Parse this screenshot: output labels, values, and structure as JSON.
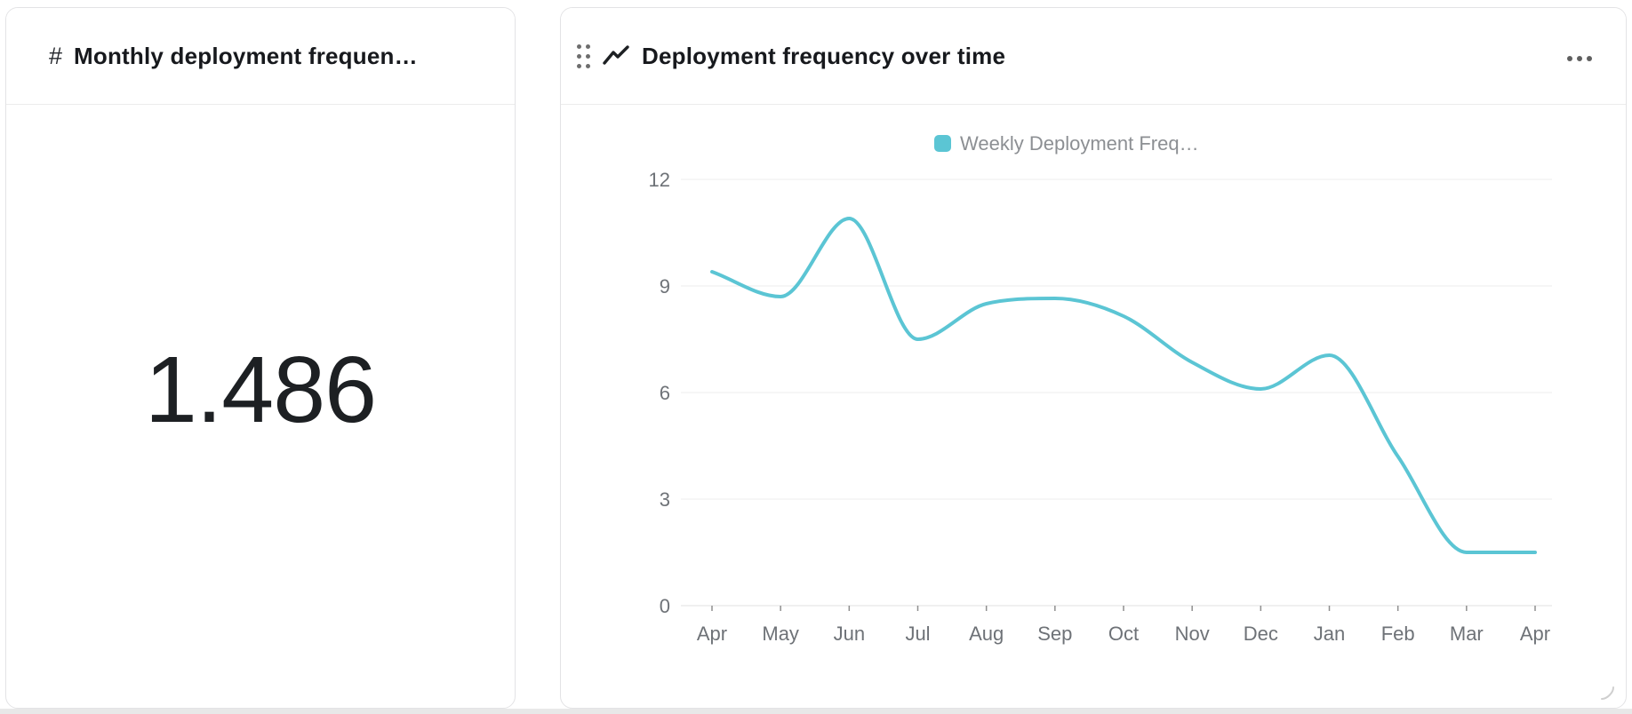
{
  "page": {
    "background": "#ffffff",
    "bottom_strip_color": "#e8e8e8"
  },
  "left_card": {
    "icon": "hash-icon",
    "icon_glyph": "#",
    "title": "Monthly deployment frequen…",
    "value": "1.486"
  },
  "right_card": {
    "icon": "line-chart-icon",
    "title": "Deployment frequency over time",
    "menu_icon": "ellipsis-menu-icon"
  },
  "chart_data": {
    "type": "line",
    "title": "Deployment frequency over time",
    "x_categories": [
      "Apr",
      "May",
      "Jun",
      "Jul",
      "Aug",
      "Sep",
      "Oct",
      "Nov",
      "Dec",
      "Jan",
      "Feb",
      "Mar",
      "Apr"
    ],
    "series": [
      {
        "name": "Weekly Deployment Freq…",
        "color": "#5bc5d4",
        "values": [
          9.4,
          8.7,
          10.9,
          7.5,
          8.5,
          8.65,
          8.15,
          6.85,
          6.1,
          7.05,
          4.2,
          1.5,
          1.5
        ]
      }
    ],
    "ylim": [
      0,
      12
    ],
    "yticks": [
      0,
      3,
      6,
      9,
      12
    ],
    "smooth": true,
    "grid": true,
    "legend_position": "top",
    "colors": {
      "axis_label": "#6e7277",
      "legend_text": "#8c8f93",
      "gridline": "#ededed",
      "axis_line": "#e0e0e0",
      "tick": "#8f8f8f"
    }
  }
}
